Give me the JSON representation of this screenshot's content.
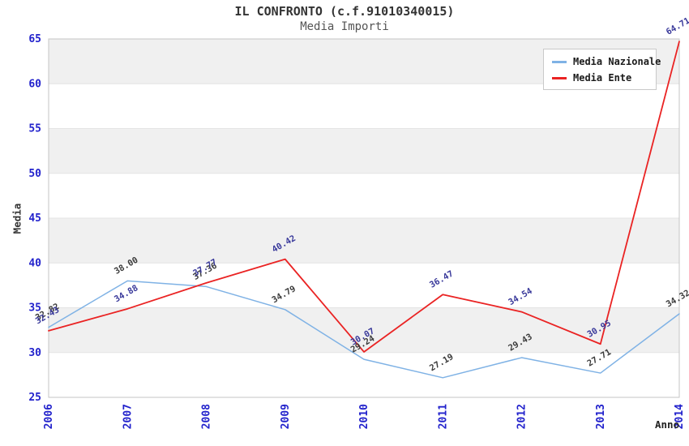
{
  "header": {
    "title": "IL CONFRONTO (c.f.91010340015)",
    "subtitle": "Media Importi"
  },
  "axis_labels": {
    "x": "Anno",
    "y": "Media"
  },
  "legend": {
    "position": "top-right",
    "items": [
      {
        "label": "Media Nazionale",
        "color": "#7fb2e5"
      },
      {
        "label": "Media Ente",
        "color": "#ea2323"
      }
    ]
  },
  "chart_data": {
    "type": "line",
    "title": "IL CONFRONTO (c.f.91010340015)",
    "subtitle": "Media Importi",
    "xlabel": "Anno",
    "ylabel": "Media",
    "categories": [
      "2006",
      "2007",
      "2008",
      "2009",
      "2010",
      "2011",
      "2012",
      "2013",
      "2014"
    ],
    "series": [
      {
        "name": "Media Nazionale",
        "color": "#7fb2e5",
        "label_color": "#3a3a3a",
        "values": [
          32.82,
          38.0,
          37.36,
          34.79,
          29.24,
          27.19,
          29.43,
          27.71,
          34.32
        ]
      },
      {
        "name": "Media Ente",
        "color": "#ea2323",
        "label_color": "#38389a",
        "values": [
          32.43,
          34.88,
          37.77,
          40.42,
          30.07,
          36.47,
          34.54,
          30.95,
          64.71
        ]
      }
    ],
    "ylim": [
      25,
      65
    ],
    "y_ticks": [
      25,
      30,
      35,
      40,
      45,
      50,
      55,
      60,
      65
    ],
    "grid": "horizontal-bands",
    "band_ranges": [
      [
        30,
        35
      ],
      [
        40,
        45
      ],
      [
        50,
        55
      ],
      [
        60,
        65
      ]
    ],
    "band_color": "#f0f0f0",
    "gridline_color": "#e4e4e4",
    "plot_border_color": "#c4c4c4",
    "tick_label_color": "#2222cc",
    "legend_position": "top-right",
    "point_label_rotation_deg": -30,
    "point_label_decimals": 2
  }
}
